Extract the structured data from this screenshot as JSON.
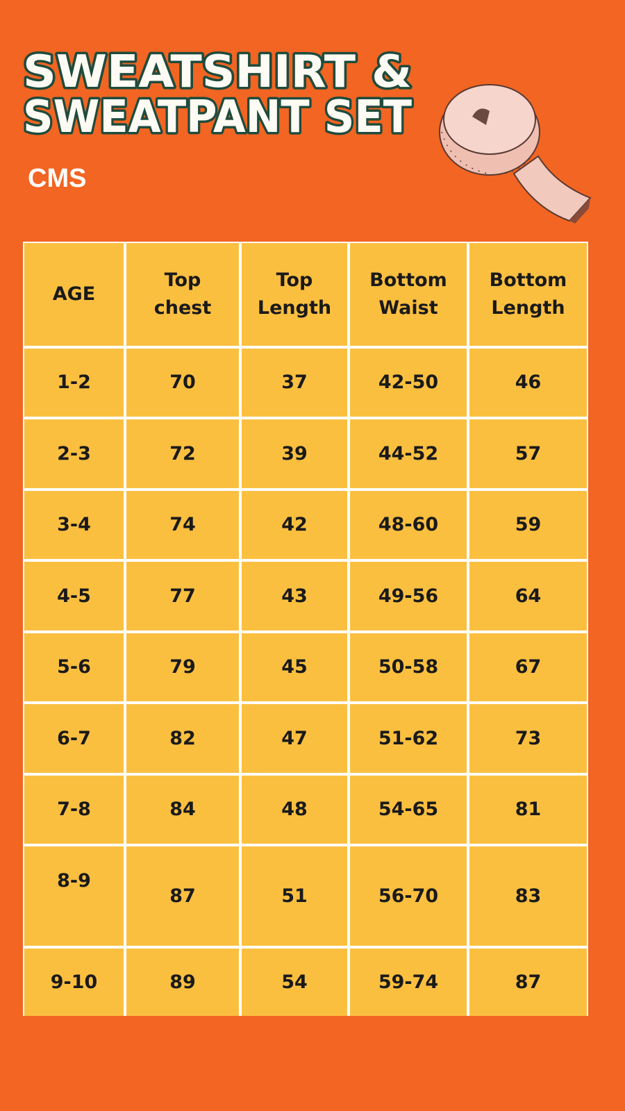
{
  "header": {
    "title": [
      "SWEATSHIRT &",
      "SWEATPANT SET"
    ],
    "subtitle": "CMS"
  },
  "table": {
    "columns": [
      [
        "AGE"
      ],
      [
        "Top",
        "chest"
      ],
      [
        "Top",
        "Length"
      ],
      [
        "Bottom",
        "Waist"
      ],
      [
        "Bottom",
        "Length"
      ]
    ],
    "rows": [
      [
        "1-2",
        70,
        37,
        "42-50",
        46
      ],
      [
        "2-3",
        72,
        39,
        "44-52",
        57
      ],
      [
        "3-4",
        74,
        42,
        "48-60",
        59
      ],
      [
        "4-5",
        77,
        43,
        "49-56",
        64
      ],
      [
        "5-6",
        79,
        45,
        "50-58",
        67
      ],
      [
        "6-7",
        82,
        47,
        "51-62",
        73
      ],
      [
        "7-8",
        84,
        48,
        "54-65",
        81
      ],
      [
        "8-9",
        87,
        51,
        "56-70",
        83
      ],
      [
        "9-10",
        89,
        54,
        "59-74",
        87
      ]
    ]
  }
}
